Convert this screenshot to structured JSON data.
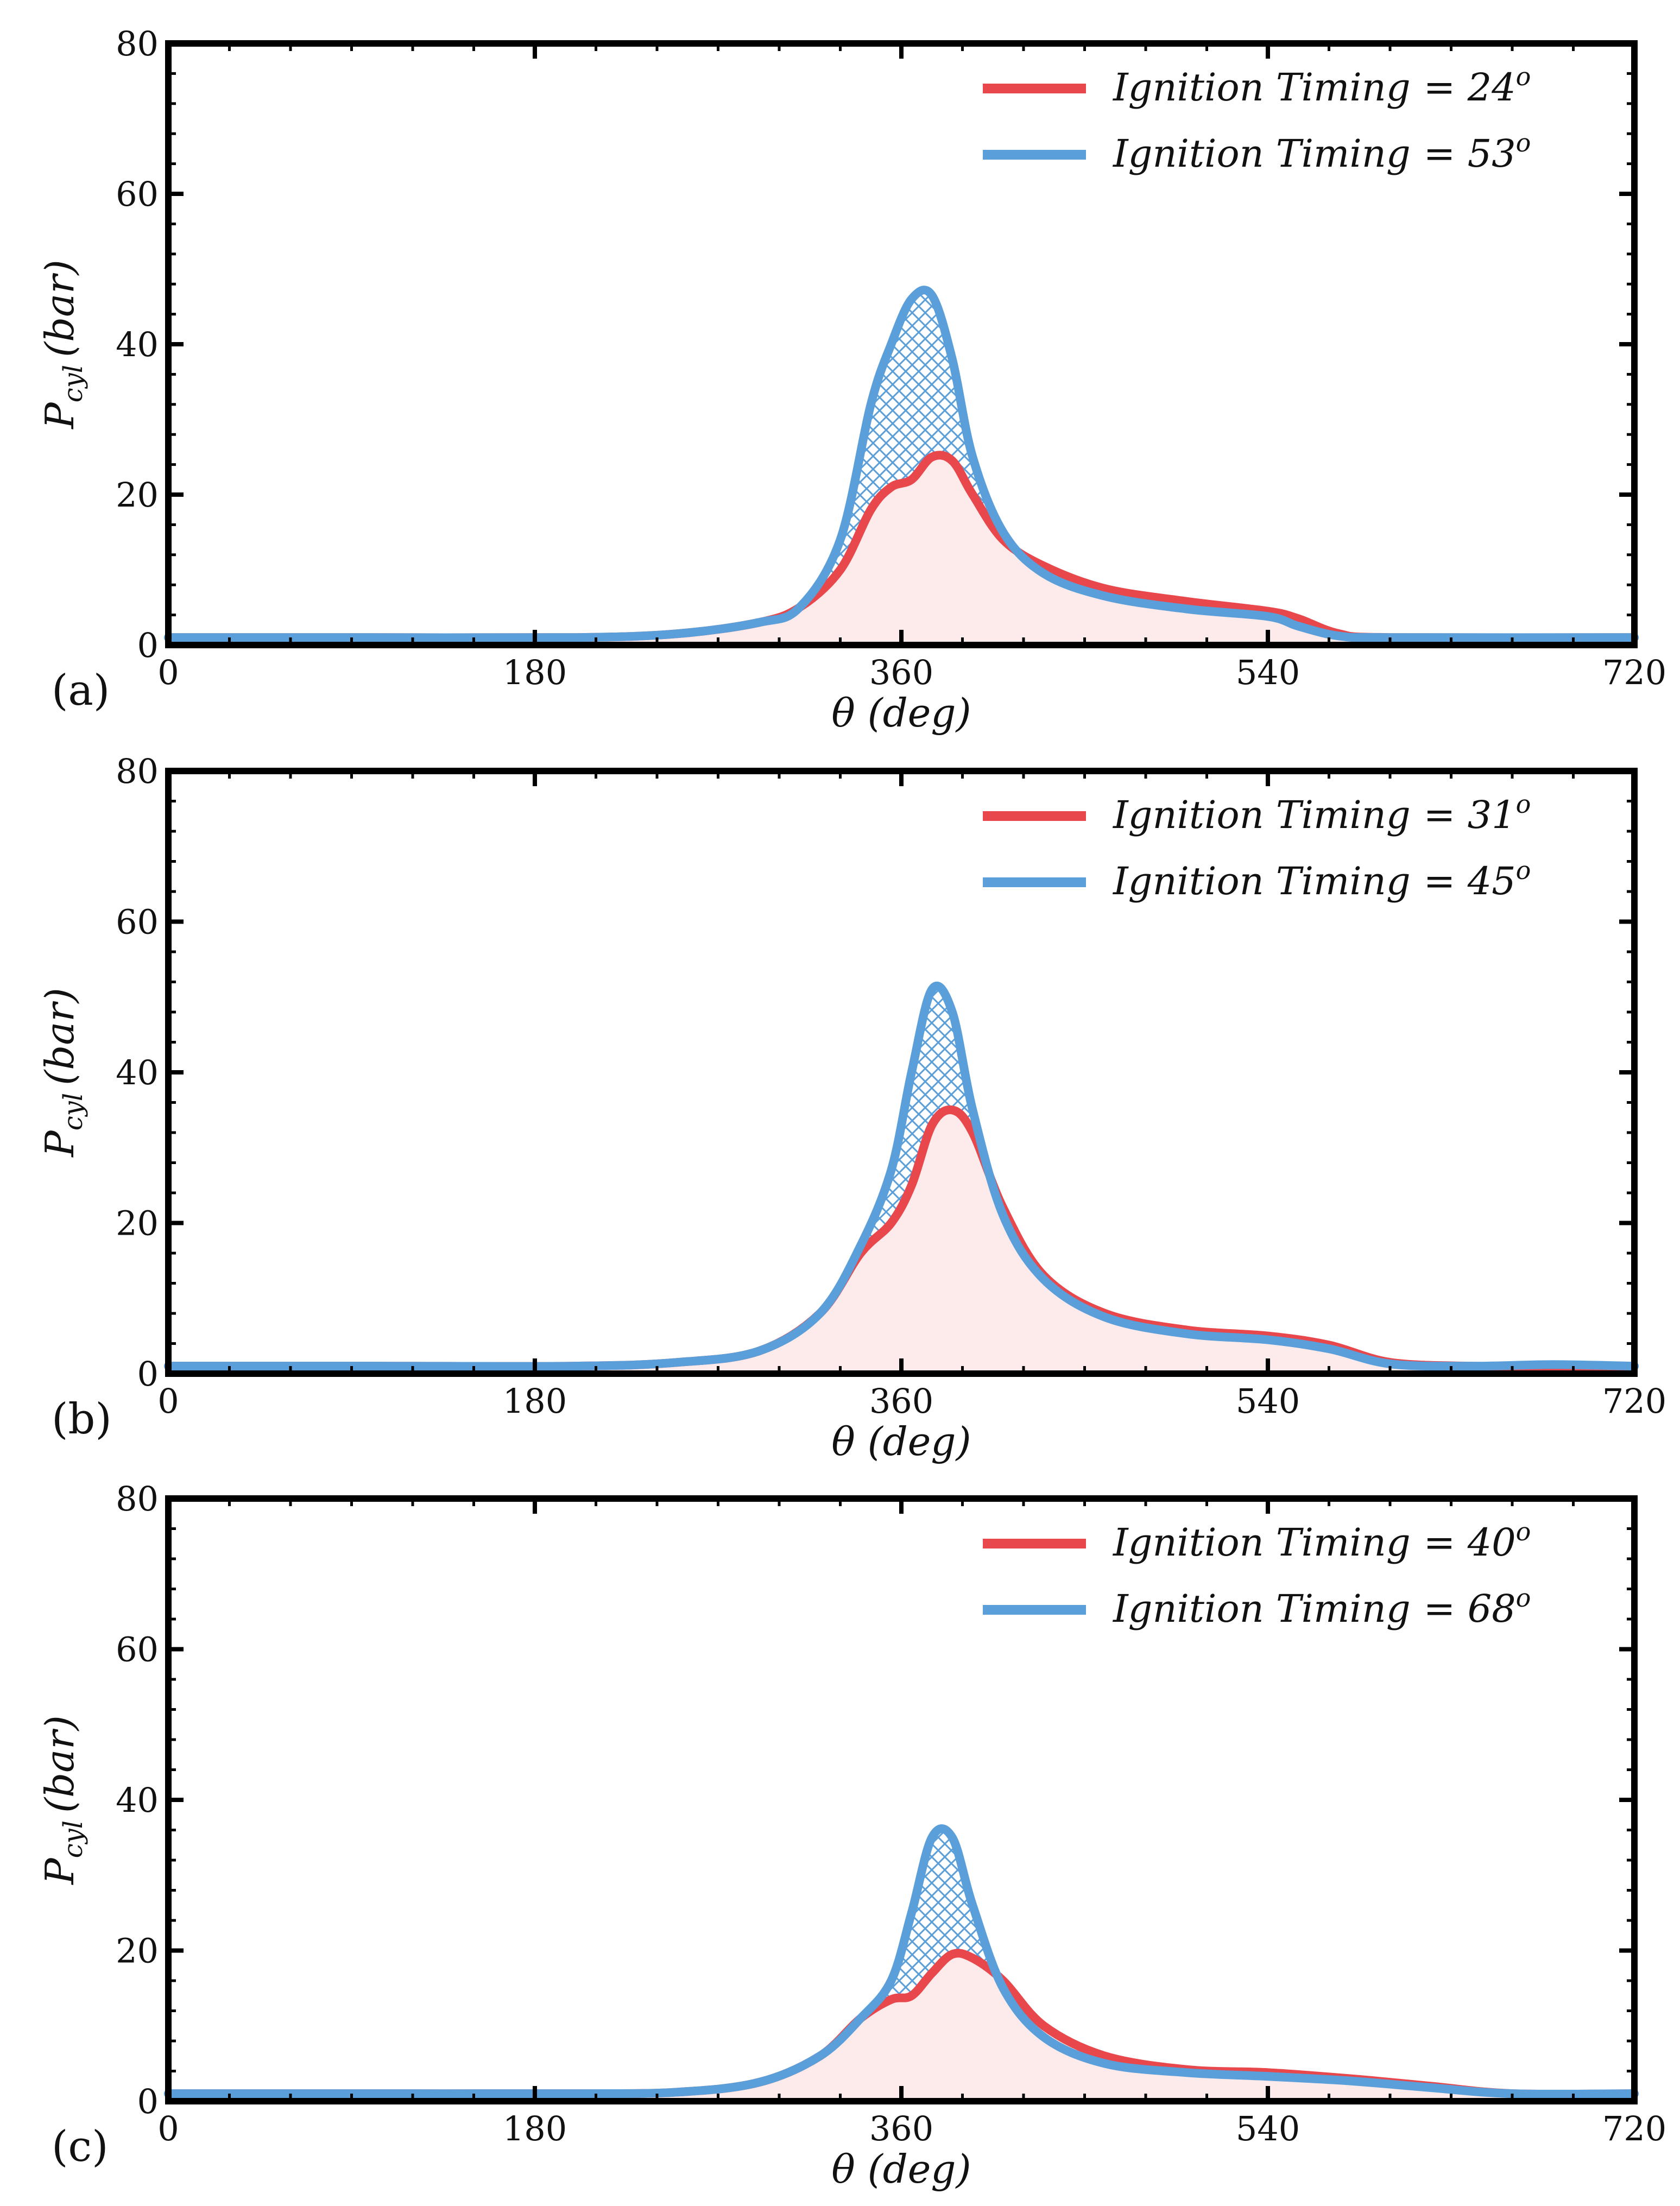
{
  "chart_data": [
    {
      "type": "line",
      "panel_label": "(a)",
      "xlabel": "θ (deg)",
      "ylabel": "P",
      "ylabel_sub": "cyl",
      "ylabel_unit": "(bar)",
      "xlim": [
        0,
        720
      ],
      "ylim": [
        0,
        80
      ],
      "xticks": [
        0,
        180,
        360,
        540,
        720
      ],
      "yticks": [
        0,
        20,
        40,
        60,
        80
      ],
      "x_tick_labels": [
        "0",
        "180",
        "360",
        "540",
        "720"
      ],
      "y_tick_labels": [
        "0",
        "20",
        "40",
        "60",
        "80"
      ],
      "legend_position": "top-right",
      "series": [
        {
          "name": "Ignition Timing = 24°",
          "legend_text": "Ignition Timing",
          "legend_value": "= 24",
          "legend_sup": "o",
          "color": "#e8474c",
          "fill": "#fdeaea",
          "x": [
            0,
            100,
            200,
            250,
            290,
            310,
            330,
            345,
            355,
            365,
            375,
            385,
            395,
            410,
            430,
            460,
            500,
            540,
            555,
            575,
            600,
            720
          ],
          "y": [
            1,
            1,
            1,
            1.5,
            3,
            5,
            10,
            18,
            21,
            22,
            25,
            24.5,
            20,
            14,
            10.5,
            7.5,
            5.8,
            4.5,
            3.5,
            1.5,
            1,
            1
          ]
        },
        {
          "name": "Ignition Timing = 53°",
          "legend_text": "Ignition Timing",
          "legend_value": "= 53",
          "legend_sup": "o",
          "color": "#5a9fd9",
          "hatch": true,
          "x": [
            0,
            100,
            200,
            250,
            290,
            310,
            330,
            345,
            355,
            365,
            375,
            385,
            395,
            410,
            430,
            460,
            500,
            540,
            555,
            575,
            600,
            720
          ],
          "y": [
            1,
            1,
            1,
            1.5,
            3,
            5,
            14,
            32,
            40,
            46,
            46.5,
            38,
            25,
            15,
            9.5,
            6.5,
            4.8,
            3.8,
            2.5,
            1.2,
            1,
            1
          ]
        }
      ]
    },
    {
      "type": "line",
      "panel_label": "(b)",
      "xlabel": "θ (deg)",
      "ylabel": "P",
      "ylabel_sub": "cyl",
      "ylabel_unit": "(bar)",
      "xlim": [
        0,
        720
      ],
      "ylim": [
        0,
        80
      ],
      "xticks": [
        0,
        180,
        360,
        540,
        720
      ],
      "yticks": [
        0,
        20,
        40,
        60,
        80
      ],
      "x_tick_labels": [
        "0",
        "180",
        "360",
        "540",
        "720"
      ],
      "y_tick_labels": [
        "0",
        "20",
        "40",
        "60",
        "80"
      ],
      "legend_position": "top-right",
      "series": [
        {
          "name": "Ignition Timing = 31°",
          "legend_text": "Ignition Timing",
          "legend_value": "= 31",
          "legend_sup": "o",
          "color": "#e8474c",
          "fill": "#fdeaea",
          "x": [
            0,
            100,
            200,
            250,
            290,
            320,
            340,
            355,
            365,
            375,
            385,
            395,
            410,
            430,
            460,
            500,
            540,
            570,
            600,
            640,
            680,
            720
          ],
          "y": [
            1,
            1,
            1,
            1.5,
            3,
            8,
            16,
            20,
            25,
            33,
            35,
            32,
            22,
            13,
            8,
            5.8,
            5,
            3.8,
            1.5,
            1,
            1,
            1
          ]
        },
        {
          "name": "Ignition Timing = 45°",
          "legend_text": "Ignition Timing",
          "legend_value": "= 45",
          "legend_sup": "o",
          "color": "#5a9fd9",
          "hatch": true,
          "x": [
            0,
            100,
            200,
            250,
            290,
            320,
            340,
            355,
            365,
            375,
            385,
            395,
            410,
            430,
            460,
            500,
            540,
            570,
            600,
            640,
            680,
            720
          ],
          "y": [
            1,
            1,
            1,
            1.5,
            3,
            8,
            17,
            27,
            40,
            51,
            48,
            35,
            21,
            12.5,
            7.5,
            5.3,
            4.5,
            3.3,
            1.3,
            1,
            1.2,
            1
          ]
        }
      ]
    },
    {
      "type": "line",
      "panel_label": "(c)",
      "xlabel": "θ (deg)",
      "ylabel": "P",
      "ylabel_sub": "cyl",
      "ylabel_unit": "(bar)",
      "xlim": [
        0,
        720
      ],
      "ylim": [
        0,
        80
      ],
      "xticks": [
        0,
        180,
        360,
        540,
        720
      ],
      "yticks": [
        0,
        20,
        40,
        60,
        80
      ],
      "x_tick_labels": [
        "0",
        "180",
        "360",
        "540",
        "720"
      ],
      "y_tick_labels": [
        "0",
        "20",
        "40",
        "60",
        "80"
      ],
      "legend_position": "top-right",
      "series": [
        {
          "name": "Ignition Timing = 40°",
          "legend_text": "Ignition Timing",
          "legend_value": "= 40",
          "legend_sup": "o",
          "color": "#e8474c",
          "fill": "#fdeaea",
          "x": [
            0,
            100,
            200,
            250,
            290,
            320,
            340,
            355,
            365,
            375,
            385,
            395,
            410,
            430,
            460,
            500,
            540,
            580,
            620,
            660,
            720
          ],
          "y": [
            1,
            1,
            1,
            1.2,
            2.5,
            6,
            11,
            13.5,
            14,
            17,
            19.5,
            19,
            16,
            10,
            6,
            4.2,
            3.8,
            3,
            2,
            1,
            1
          ]
        },
        {
          "name": "Ignition Timing = 68°",
          "legend_text": "Ignition Timing",
          "legend_value": "= 68",
          "legend_sup": "o",
          "color": "#5a9fd9",
          "hatch": true,
          "x": [
            0,
            100,
            200,
            250,
            290,
            320,
            340,
            355,
            365,
            375,
            385,
            395,
            410,
            430,
            460,
            500,
            540,
            580,
            620,
            660,
            720
          ],
          "y": [
            1,
            1,
            1,
            1.2,
            2.5,
            6,
            11,
            16,
            25,
            35,
            35,
            26,
            15,
            8.5,
            5,
            3.8,
            3.3,
            2.7,
            1.8,
            1,
            1
          ]
        }
      ]
    }
  ]
}
